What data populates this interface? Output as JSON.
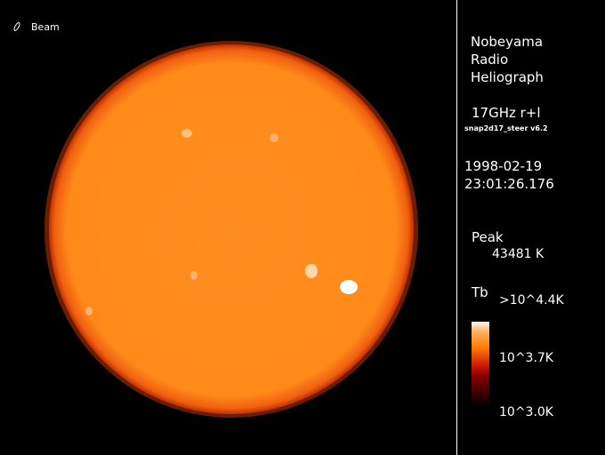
{
  "beam": {
    "label": "Beam",
    "icon": "beam-ellipse-icon"
  },
  "observatory": {
    "line1": "Nobeyama",
    "line2": "Radio",
    "line3": "Heliograph"
  },
  "frequency": "17GHz  r+l",
  "software": "snap2d17_steer v6.2",
  "date": "1998-02-19",
  "time": "23:01:26.176",
  "peak": {
    "label": "Peak",
    "value": "43481  K"
  },
  "colorbar": {
    "label": "Tb",
    "max": ">10^4.4K",
    "mid": "10^3.7K",
    "min": "10^3.0K",
    "colors": [
      "#fff8f0",
      "#ff8000",
      "#900000",
      "#000000"
    ]
  },
  "colors": {
    "sun": "#ff8a1c",
    "limb": "#e04000"
  }
}
